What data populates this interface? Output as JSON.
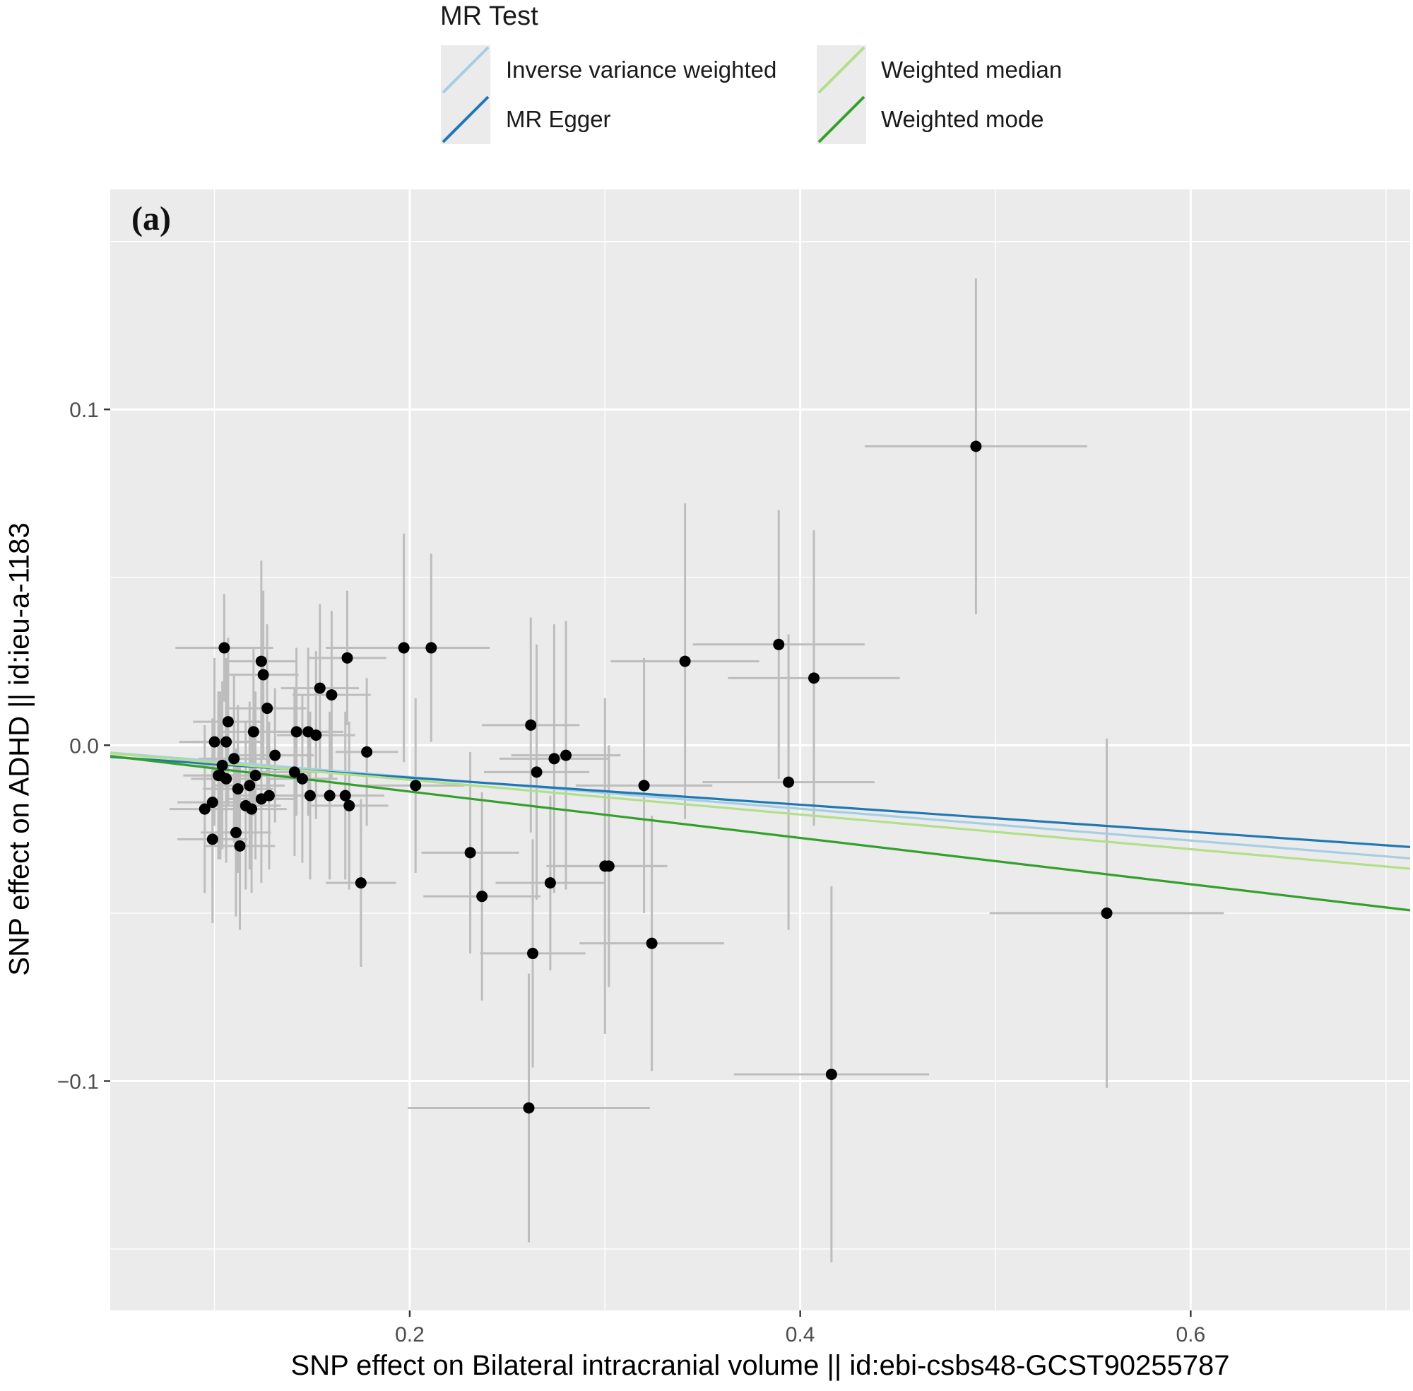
{
  "legend": {
    "title": "MR Test",
    "entries": [
      {
        "label": "Inverse variance weighted",
        "color": "#a6cee3"
      },
      {
        "label": "MR Egger",
        "color": "#1f78b4"
      },
      {
        "label": "Weighted median",
        "color": "#b2df8a"
      },
      {
        "label": "Weighted mode",
        "color": "#33a02c"
      }
    ]
  },
  "panel_label": "(a)",
  "chart_data": {
    "type": "scatter",
    "title": "",
    "xlabel": "SNP effect on Bilateral intracranial volume || id:ebi-csbs48-GCST90255787",
    "ylabel": "SNP effect on ADHD || id:ieu-a-1183",
    "xlim": [
      0.0466,
      0.7124
    ],
    "ylim": [
      -0.1683,
      0.1655
    ],
    "x_ticks": [
      {
        "value": 0.2,
        "label": "0.2"
      },
      {
        "value": 0.4,
        "label": "0.4"
      },
      {
        "value": 0.6,
        "label": "0.6"
      }
    ],
    "y_ticks": [
      {
        "value": 0.1,
        "label": "0.1"
      },
      {
        "value": 0.0,
        "label": "0.0"
      },
      {
        "value": -0.1,
        "label": "−0.1"
      }
    ],
    "grid": true,
    "legend_position": "top",
    "points": [
      {
        "x": 0.49,
        "y": 0.089,
        "x_err": 0.057,
        "y_err": 0.05
      },
      {
        "x": 0.389,
        "y": 0.03,
        "x_err": 0.044,
        "y_err": 0.04
      },
      {
        "x": 0.407,
        "y": 0.02,
        "x_err": 0.044,
        "y_err": 0.044
      },
      {
        "x": 0.341,
        "y": 0.025,
        "x_err": 0.038,
        "y_err": 0.047
      },
      {
        "x": 0.394,
        "y": -0.011,
        "x_err": 0.044,
        "y_err": 0.044
      },
      {
        "x": 0.32,
        "y": -0.012,
        "x_err": 0.035,
        "y_err": 0.038
      },
      {
        "x": 0.557,
        "y": -0.05,
        "x_err": 0.06,
        "y_err": 0.052
      },
      {
        "x": 0.416,
        "y": -0.098,
        "x_err": 0.05,
        "y_err": 0.056
      },
      {
        "x": 0.324,
        "y": -0.059,
        "x_err": 0.037,
        "y_err": 0.038
      },
      {
        "x": 0.262,
        "y": 0.006,
        "x_err": 0.025,
        "y_err": 0.032
      },
      {
        "x": 0.265,
        "y": -0.008,
        "x_err": 0.027,
        "y_err": 0.038
      },
      {
        "x": 0.274,
        "y": -0.004,
        "x_err": 0.028,
        "y_err": 0.04
      },
      {
        "x": 0.28,
        "y": -0.003,
        "x_err": 0.028,
        "y_err": 0.04
      },
      {
        "x": 0.272,
        "y": -0.041,
        "x_err": 0.028,
        "y_err": 0.026
      },
      {
        "x": 0.3,
        "y": -0.036,
        "x_err": 0.03,
        "y_err": 0.05
      },
      {
        "x": 0.302,
        "y": -0.036,
        "x_err": 0.03,
        "y_err": 0.036
      },
      {
        "x": 0.263,
        "y": -0.062,
        "x_err": 0.027,
        "y_err": 0.034
      },
      {
        "x": 0.261,
        "y": -0.108,
        "x_err": 0.062,
        "y_err": 0.04
      },
      {
        "x": 0.231,
        "y": -0.032,
        "x_err": 0.025,
        "y_err": 0.03
      },
      {
        "x": 0.237,
        "y": -0.045,
        "x_err": 0.03,
        "y_err": 0.031
      },
      {
        "x": 0.197,
        "y": 0.029,
        "x_err": 0.04,
        "y_err": 0.034
      },
      {
        "x": 0.211,
        "y": 0.029,
        "x_err": 0.03,
        "y_err": 0.028
      },
      {
        "x": 0.203,
        "y": -0.012,
        "x_err": 0.025,
        "y_err": 0.026
      },
      {
        "x": 0.168,
        "y": 0.026,
        "x_err": 0.02,
        "y_err": 0.02
      },
      {
        "x": 0.175,
        "y": -0.041,
        "x_err": 0.018,
        "y_err": 0.025
      },
      {
        "x": 0.178,
        "y": -0.002,
        "x_err": 0.016,
        "y_err": 0.022
      },
      {
        "x": 0.169,
        "y": -0.018,
        "x_err": 0.02,
        "y_err": 0.025
      },
      {
        "x": 0.167,
        "y": -0.015,
        "x_err": 0.02,
        "y_err": 0.025
      },
      {
        "x": 0.16,
        "y": 0.015,
        "x_err": 0.02,
        "y_err": 0.025
      },
      {
        "x": 0.159,
        "y": -0.015,
        "x_err": 0.02,
        "y_err": 0.025
      },
      {
        "x": 0.154,
        "y": 0.017,
        "x_err": 0.02,
        "y_err": 0.025
      },
      {
        "x": 0.152,
        "y": 0.003,
        "x_err": 0.02,
        "y_err": 0.025
      },
      {
        "x": 0.148,
        "y": 0.004,
        "x_err": 0.018,
        "y_err": 0.025
      },
      {
        "x": 0.149,
        "y": -0.015,
        "x_err": 0.018,
        "y_err": 0.025
      },
      {
        "x": 0.145,
        "y": -0.01,
        "x_err": 0.018,
        "y_err": 0.025
      },
      {
        "x": 0.142,
        "y": 0.004,
        "x_err": 0.018,
        "y_err": 0.025
      },
      {
        "x": 0.141,
        "y": -0.008,
        "x_err": 0.018,
        "y_err": 0.025
      },
      {
        "x": 0.131,
        "y": -0.003,
        "x_err": 0.02,
        "y_err": 0.02
      },
      {
        "x": 0.127,
        "y": 0.011,
        "x_err": 0.02,
        "y_err": 0.025
      },
      {
        "x": 0.128,
        "y": -0.015,
        "x_err": 0.018,
        "y_err": 0.022
      },
      {
        "x": 0.124,
        "y": 0.025,
        "x_err": 0.018,
        "y_err": 0.03
      },
      {
        "x": 0.125,
        "y": 0.021,
        "x_err": 0.018,
        "y_err": 0.025
      },
      {
        "x": 0.124,
        "y": -0.016,
        "x_err": 0.018,
        "y_err": 0.025
      },
      {
        "x": 0.121,
        "y": -0.009,
        "x_err": 0.018,
        "y_err": 0.025
      },
      {
        "x": 0.12,
        "y": 0.004,
        "x_err": 0.018,
        "y_err": 0.025
      },
      {
        "x": 0.118,
        "y": -0.012,
        "x_err": 0.018,
        "y_err": 0.025
      },
      {
        "x": 0.119,
        "y": -0.019,
        "x_err": 0.018,
        "y_err": 0.025
      },
      {
        "x": 0.116,
        "y": -0.018,
        "x_err": 0.018,
        "y_err": 0.025
      },
      {
        "x": 0.113,
        "y": -0.03,
        "x_err": 0.018,
        "y_err": 0.025
      },
      {
        "x": 0.112,
        "y": -0.013,
        "x_err": 0.018,
        "y_err": 0.025
      },
      {
        "x": 0.111,
        "y": -0.026,
        "x_err": 0.018,
        "y_err": 0.025
      },
      {
        "x": 0.11,
        "y": -0.004,
        "x_err": 0.018,
        "y_err": 0.025
      },
      {
        "x": 0.107,
        "y": 0.007,
        "x_err": 0.018,
        "y_err": 0.025
      },
      {
        "x": 0.106,
        "y": 0.001,
        "x_err": 0.018,
        "y_err": 0.025
      },
      {
        "x": 0.105,
        "y": 0.029,
        "x_err": 0.025,
        "y_err": 0.016
      },
      {
        "x": 0.106,
        "y": -0.01,
        "x_err": 0.018,
        "y_err": 0.025
      },
      {
        "x": 0.103,
        "y": -0.009,
        "x_err": 0.018,
        "y_err": 0.025
      },
      {
        "x": 0.1,
        "y": 0.001,
        "x_err": 0.018,
        "y_err": 0.025
      },
      {
        "x": 0.102,
        "y": -0.009,
        "x_err": 0.018,
        "y_err": 0.025
      },
      {
        "x": 0.099,
        "y": -0.017,
        "x_err": 0.018,
        "y_err": 0.025
      },
      {
        "x": 0.099,
        "y": -0.028,
        "x_err": 0.018,
        "y_err": 0.025
      },
      {
        "x": 0.095,
        "y": -0.019,
        "x_err": 0.018,
        "y_err": 0.025
      },
      {
        "x": 0.104,
        "y": -0.006,
        "x_err": 0.018,
        "y_err": 0.025
      }
    ],
    "series": [
      {
        "name": "Inverse variance weighted",
        "color": "#a6cee3",
        "intercept": 0.0,
        "slope": -0.0473
      },
      {
        "name": "MR Egger",
        "color": "#1f78b4",
        "intercept": -0.0016,
        "slope": -0.0403
      },
      {
        "name": "Weighted median",
        "color": "#b2df8a",
        "intercept": 0.0,
        "slope": -0.0516
      },
      {
        "name": "Weighted mode",
        "color": "#33a02c",
        "intercept": 0.0,
        "slope": -0.069
      }
    ]
  }
}
